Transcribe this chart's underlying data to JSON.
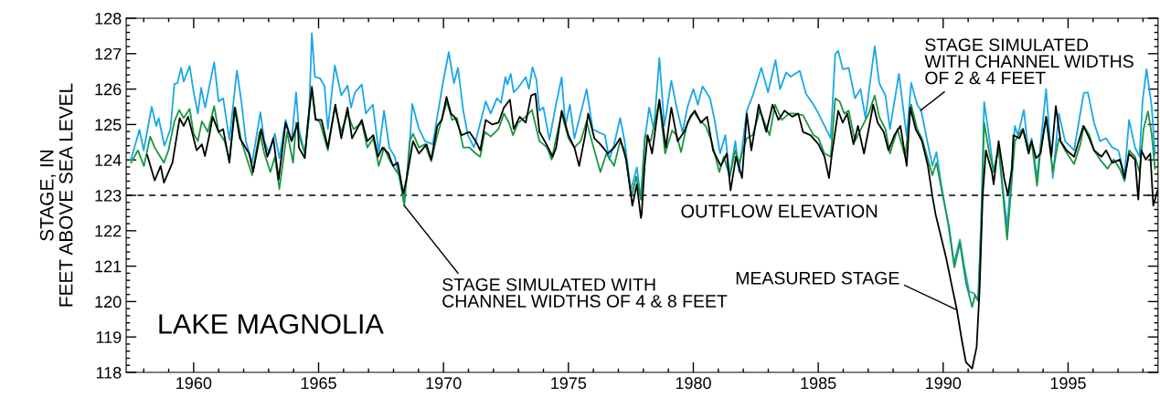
{
  "chart_data": {
    "type": "line",
    "title": "LAKE MAGNOLIA",
    "ylabel": "STAGE, IN\nFEET ABOVE SEA LEVEL",
    "xlim": [
      1957.3,
      1998.6
    ],
    "xticks": [
      1960,
      1965,
      1970,
      1975,
      1980,
      1985,
      1990,
      1995
    ],
    "ylim": [
      118,
      128
    ],
    "yticks": [
      118,
      119,
      120,
      121,
      122,
      123,
      124,
      125,
      126,
      127,
      128
    ],
    "grid": false,
    "marker": "none",
    "line_style": "solid",
    "ref_lines": [
      {
        "axis": "y",
        "value": 123,
        "label": "OUTFLOW ELEVATION",
        "color": "#000000",
        "line_style": "dashed"
      }
    ],
    "annotations": [
      {
        "text": "STAGE SIMULATED WITH\nCHANNEL WIDTHS OF 4 & 8 FEET",
        "x": 1968.43,
        "y": 122.71
      },
      {
        "text": "STAGE SIMULATED\nWITH CHANNEL WIDTHS\nOF 2 & 4 FEET",
        "x": 1989.1,
        "y": 125.4
      },
      {
        "text": "MEASURED STAGE",
        "x": 1990.55,
        "y": 119.76
      }
    ],
    "series": [
      {
        "color": "#1aa7e8",
        "x": [
          1957.49,
          1957.83,
          1958.0,
          1958.32,
          1958.5,
          1958.6,
          1958.83,
          1959.07,
          1959.23,
          1959.35,
          1959.5,
          1959.6,
          1959.84,
          1960.0,
          1960.17,
          1960.3,
          1960.46,
          1960.63,
          1960.82,
          1961.0,
          1961.18,
          1961.43,
          1961.73,
          1961.91,
          1962.09,
          1962.34,
          1962.67,
          1962.83,
          1963.03,
          1963.25,
          1963.43,
          1963.68,
          1963.92,
          1964.1,
          1964.21,
          1964.45,
          1964.61,
          1964.73,
          1964.85,
          1965.06,
          1965.24,
          1965.37,
          1965.65,
          1965.91,
          1966.16,
          1966.3,
          1966.46,
          1966.73,
          1966.89,
          1967.17,
          1967.41,
          1967.62,
          1967.83,
          1968.05,
          1968.29,
          1968.41,
          1968.59,
          1968.75,
          1969.02,
          1969.26,
          1969.57,
          1969.75,
          1970.0,
          1970.21,
          1970.42,
          1970.58,
          1970.79,
          1970.98,
          1971.22,
          1971.41,
          1971.69,
          1971.89,
          1972.14,
          1972.3,
          1972.48,
          1972.56,
          1972.69,
          1972.81,
          1972.99,
          1973.29,
          1973.42,
          1973.56,
          1973.72,
          1973.84,
          1974.0,
          1974.24,
          1974.49,
          1974.73,
          1974.88,
          1975.06,
          1975.24,
          1975.49,
          1975.73,
          1975.97,
          1976.22,
          1976.46,
          1976.64,
          1976.83,
          1977.07,
          1977.25,
          1977.5,
          1977.74,
          1977.9,
          1978.05,
          1978.23,
          1978.42,
          1978.64,
          1978.84,
          1979.12,
          1979.33,
          1979.57,
          1979.76,
          1980.0,
          1980.18,
          1980.37,
          1980.67,
          1980.85,
          1981.07,
          1981.28,
          1981.46,
          1981.68,
          1981.83,
          1982.14,
          1982.38,
          1982.72,
          1982.99,
          1983.29,
          1983.47,
          1983.72,
          1983.9,
          1984.26,
          1984.51,
          1984.81,
          1985.01,
          1985.25,
          1985.5,
          1985.68,
          1985.8,
          1985.98,
          1986.22,
          1986.47,
          1986.69,
          1986.89,
          1987.26,
          1987.44,
          1987.69,
          1987.87,
          1988.23,
          1988.54,
          1988.72,
          1988.96,
          1989.12,
          1989.39,
          1989.57,
          1989.73,
          1989.94,
          1990.18,
          1990.43,
          1990.67,
          1990.85,
          1991.04,
          1991.22,
          1991.4,
          1991.52,
          1991.64,
          1991.83,
          1992.02,
          1992.22,
          1992.56,
          1992.87,
          1992.99,
          1993.23,
          1993.42,
          1993.54,
          1993.76,
          1993.9,
          1994.12,
          1994.39,
          1994.63,
          1994.88,
          1995.24,
          1995.51,
          1995.63,
          1995.79,
          1996.04,
          1996.28,
          1996.52,
          1996.77,
          1997.01,
          1997.26,
          1997.44,
          1997.68,
          1997.86,
          1997.98,
          1998.14,
          1998.35,
          1998.48
        ],
        "values": [
          124.01,
          124.85,
          124.27,
          125.5,
          124.96,
          125.18,
          124.4,
          124.87,
          126.15,
          126.17,
          126.6,
          126.21,
          126.65,
          125.91,
          125.31,
          126.04,
          125.48,
          126.08,
          126.76,
          125.65,
          125.74,
          124.57,
          126.52,
          125.65,
          124.53,
          123.92,
          125.35,
          124.53,
          124.18,
          124.74,
          124.05,
          125.13,
          124.53,
          125.91,
          124.87,
          124.18,
          125.13,
          127.58,
          126.35,
          126.3,
          126.08,
          124.87,
          126.67,
          125.82,
          126.1,
          125.48,
          125.91,
          126.13,
          125.31,
          125.56,
          124.22,
          125.39,
          124.35,
          124.09,
          123.31,
          122.88,
          123.83,
          125.58,
          124.87,
          124.53,
          124.44,
          125.22,
          126.26,
          127.04,
          126.17,
          126.6,
          125.39,
          124.7,
          124.35,
          124.87,
          125.65,
          125.31,
          125.74,
          125.61,
          126.34,
          126.13,
          126.43,
          125.91,
          126.04,
          126.34,
          126.0,
          126.62,
          126.26,
          125.39,
          125.48,
          124.57,
          125.52,
          126.33,
          124.96,
          125.56,
          124.61,
          125.31,
          126.0,
          124.87,
          124.78,
          124.7,
          124.01,
          124.44,
          125.18,
          124.53,
          123.14,
          123.79,
          122.88,
          124.53,
          125.48,
          124.87,
          126.88,
          124.96,
          126.24,
          125.48,
          124.78,
          125.48,
          126.0,
          125.56,
          126.08,
          125.74,
          125.13,
          124.18,
          124.7,
          123.53,
          124.53,
          123.66,
          125.39,
          125.82,
          126.6,
          125.91,
          126.82,
          126.0,
          126.47,
          126.35,
          126.52,
          125.87,
          125.56,
          125.31,
          124.96,
          124.61,
          126.99,
          127.08,
          126.56,
          126.6,
          125.74,
          126.0,
          125.18,
          127.21,
          126.17,
          125.82,
          124.87,
          126.43,
          124.66,
          126.17,
          125.56,
          125.39,
          124.44,
          123.83,
          124.22,
          123.23,
          122.27,
          121.06,
          121.75,
          120.97,
          120.28,
          120.24,
          120.02,
          122.27,
          125.63,
          124.7,
          123.66,
          124.35,
          122.1,
          124.96,
          124.7,
          125.41,
          124.18,
          124.61,
          123.49,
          124.44,
          126.0,
          123.49,
          125.31,
          124.53,
          124.27,
          125.41,
          125.89,
          125.91,
          125.05,
          124.53,
          124.61,
          124.35,
          124.27,
          123.57,
          125.13,
          124.35,
          124.09,
          125.65,
          126.56,
          125.48,
          124.14
        ]
      },
      {
        "color": "#1a9641",
        "x": [
          1957.49,
          1957.77,
          1958.01,
          1958.26,
          1958.44,
          1958.81,
          1958.99,
          1959.23,
          1959.42,
          1959.6,
          1959.84,
          1960.0,
          1960.17,
          1960.33,
          1960.57,
          1960.82,
          1961.0,
          1961.24,
          1961.43,
          1961.67,
          1961.91,
          1962.34,
          1962.64,
          1962.83,
          1963.07,
          1963.25,
          1963.43,
          1963.74,
          1963.98,
          1964.1,
          1964.21,
          1964.45,
          1964.73,
          1964.88,
          1965.06,
          1965.37,
          1965.65,
          1965.91,
          1966.16,
          1966.4,
          1966.73,
          1966.95,
          1967.19,
          1967.41,
          1967.62,
          1967.83,
          1968.05,
          1968.23,
          1968.43,
          1968.65,
          1968.78,
          1969.02,
          1969.26,
          1969.51,
          1969.75,
          1970.0,
          1970.14,
          1970.34,
          1970.54,
          1970.79,
          1971.04,
          1971.29,
          1971.47,
          1971.65,
          1971.89,
          1972.2,
          1972.42,
          1972.62,
          1972.78,
          1972.99,
          1973.29,
          1973.54,
          1973.84,
          1974.15,
          1974.33,
          1974.51,
          1974.73,
          1975.0,
          1975.24,
          1975.49,
          1975.73,
          1975.97,
          1976.28,
          1976.52,
          1976.83,
          1977.07,
          1977.25,
          1977.53,
          1977.72,
          1977.9,
          1978.07,
          1978.29,
          1978.64,
          1978.87,
          1979.15,
          1979.33,
          1979.51,
          1979.76,
          1980.02,
          1980.24,
          1980.49,
          1980.73,
          1981.04,
          1981.22,
          1981.46,
          1981.68,
          1981.83,
          1982.14,
          1982.38,
          1982.66,
          1983.05,
          1983.27,
          1983.54,
          1983.84,
          1984.08,
          1984.39,
          1984.81,
          1985.01,
          1985.25,
          1985.5,
          1985.68,
          1985.86,
          1986.04,
          1986.22,
          1986.47,
          1986.71,
          1987.02,
          1987.26,
          1987.44,
          1987.69,
          1987.87,
          1988.17,
          1988.48,
          1988.72,
          1988.96,
          1989.15,
          1989.39,
          1989.57,
          1989.73,
          1989.99,
          1990.24,
          1990.45,
          1990.67,
          1990.91,
          1991.16,
          1991.28,
          1991.4,
          1991.52,
          1991.64,
          1991.83,
          1992.02,
          1992.22,
          1992.56,
          1992.87,
          1993.17,
          1993.42,
          1993.54,
          1993.76,
          1993.9,
          1994.12,
          1994.39,
          1994.63,
          1994.88,
          1995.24,
          1995.49,
          1995.63,
          1995.85,
          1996.04,
          1996.28,
          1996.58,
          1996.83,
          1997.07,
          1997.26,
          1997.44,
          1997.68,
          1997.86,
          1998.02,
          1998.2,
          1998.35,
          1998.48
        ],
        "values": [
          123.92,
          124.27,
          123.83,
          124.66,
          124.35,
          123.92,
          124.27,
          125.09,
          125.41,
          125.18,
          125.44,
          124.74,
          124.53,
          125.09,
          124.79,
          125.52,
          124.79,
          124.53,
          124.01,
          125.48,
          124.53,
          123.57,
          124.79,
          124.18,
          123.66,
          124.09,
          123.18,
          124.79,
          123.92,
          125.05,
          124.7,
          124.18,
          126.08,
          125.18,
          125.05,
          124.27,
          125.48,
          124.79,
          125.31,
          124.87,
          125.05,
          124.35,
          124.61,
          123.83,
          124.35,
          124.01,
          123.75,
          123.57,
          122.71,
          124.53,
          124.74,
          124.35,
          124.44,
          123.96,
          124.7,
          125.31,
          125.65,
          125.13,
          125.18,
          124.35,
          124.35,
          124.18,
          124.09,
          124.79,
          124.66,
          124.87,
          125.31,
          125.05,
          124.7,
          125.05,
          125.22,
          125.41,
          124.53,
          124.35,
          124.01,
          124.61,
          125.31,
          124.61,
          124.35,
          124.53,
          125.09,
          124.44,
          123.66,
          124.18,
          123.83,
          124.53,
          124.27,
          122.97,
          123.53,
          122.88,
          124.7,
          124.53,
          125.65,
          124.18,
          124.83,
          124.7,
          124.22,
          125.05,
          125.35,
          125.13,
          124.96,
          124.53,
          123.66,
          124.09,
          123.53,
          124.27,
          123.92,
          124.61,
          124.7,
          125.39,
          124.7,
          125.56,
          125.13,
          125.31,
          125.31,
          125.26,
          124.7,
          124.61,
          124.18,
          124.09,
          125.74,
          125.65,
          125.31,
          125.39,
          124.53,
          124.87,
          125.31,
          125.82,
          125.22,
          124.87,
          124.18,
          124.87,
          124.09,
          125.56,
          124.87,
          124.61,
          124.01,
          123.57,
          123.92,
          122.97,
          122.1,
          120.97,
          121.66,
          120.54,
          119.85,
          120.19,
          120.02,
          122.1,
          125.05,
          124.27,
          123.66,
          124.35,
          121.75,
          124.53,
          124.87,
          124.35,
          124.53,
          123.27,
          124.35,
          125.18,
          123.66,
          124.61,
          124.27,
          123.88,
          124.44,
          124.96,
          124.7,
          124.27,
          124.01,
          123.75,
          124.01,
          123.75,
          123.4,
          124.27,
          124.09,
          123.66,
          124.87,
          125.37,
          124.7,
          123.75
        ]
      },
      {
        "color": "#000000",
        "x": [
          1958.14,
          1958.44,
          1958.68,
          1958.81,
          1959.15,
          1959.27,
          1959.44,
          1959.6,
          1959.78,
          1960.12,
          1960.33,
          1960.45,
          1960.63,
          1960.76,
          1961.0,
          1961.18,
          1961.43,
          1961.64,
          1961.85,
          1962.22,
          1962.38,
          1962.7,
          1962.95,
          1963.19,
          1963.4,
          1963.68,
          1963.92,
          1964.17,
          1964.21,
          1964.45,
          1964.57,
          1964.73,
          1964.88,
          1965.12,
          1965.37,
          1965.67,
          1965.91,
          1966.16,
          1966.34,
          1966.73,
          1966.95,
          1967.19,
          1967.38,
          1967.56,
          1967.8,
          1967.98,
          1968.17,
          1968.39,
          1968.53,
          1968.78,
          1969.02,
          1969.32,
          1969.51,
          1969.75,
          1969.93,
          1970.12,
          1970.3,
          1970.48,
          1970.72,
          1971.04,
          1971.29,
          1971.47,
          1971.69,
          1971.95,
          1972.2,
          1972.42,
          1972.66,
          1972.81,
          1973.05,
          1973.29,
          1973.51,
          1973.68,
          1973.84,
          1974.12,
          1974.37,
          1974.51,
          1974.73,
          1975.0,
          1975.24,
          1975.43,
          1975.67,
          1975.79,
          1976.04,
          1976.28,
          1976.58,
          1976.83,
          1977.07,
          1977.31,
          1977.56,
          1977.74,
          1977.9,
          1977.93,
          1978.05,
          1978.17,
          1978.35,
          1978.64,
          1978.9,
          1979.12,
          1979.37,
          1979.63,
          1979.88,
          1980.06,
          1980.3,
          1980.55,
          1980.79,
          1981.1,
          1981.34,
          1981.49,
          1981.71,
          1981.95,
          1982.14,
          1982.32,
          1982.62,
          1982.92,
          1983.17,
          1983.41,
          1983.65,
          1983.96,
          1984.2,
          1984.39,
          1984.69,
          1985.01,
          1985.25,
          1985.43,
          1985.55,
          1985.8,
          1985.98,
          1986.16,
          1986.41,
          1986.59,
          1986.83,
          1987.02,
          1987.2,
          1987.38,
          1987.62,
          1987.81,
          1988.05,
          1988.29,
          1988.54,
          1988.68,
          1988.9,
          1989.15,
          1989.39,
          1989.57,
          1989.7,
          1989.88,
          1990.12,
          1990.37,
          1990.55,
          1990.73,
          1990.91,
          1991.16,
          1991.34,
          1991.46,
          1991.58,
          1991.71,
          1991.95,
          1992.02,
          1992.22,
          1992.44,
          1992.59,
          1992.75,
          1992.81,
          1993.05,
          1993.2,
          1993.42,
          1993.54,
          1993.72,
          1993.9,
          1994.12,
          1994.33,
          1994.51,
          1994.7,
          1994.94,
          1995.24,
          1995.61,
          1995.85,
          1996.04,
          1996.34,
          1996.52,
          1996.77,
          1997.07,
          1997.26,
          1997.44,
          1997.68,
          1997.81,
          1997.93,
          1998.11,
          1998.29,
          1998.41,
          1998.58
        ],
        "values": [
          124.14,
          123.42,
          123.83,
          123.36,
          123.92,
          124.44,
          125.18,
          124.96,
          125.22,
          124.27,
          124.44,
          124.11,
          124.7,
          125.22,
          124.79,
          124.87,
          123.92,
          125.48,
          124.61,
          124.18,
          123.66,
          124.87,
          124.09,
          124.61,
          123.44,
          125.05,
          124.53,
          125.05,
          124.35,
          124.05,
          125.05,
          126.04,
          125.13,
          125.13,
          124.35,
          125.56,
          124.61,
          125.48,
          124.61,
          125.13,
          124.53,
          124.7,
          124.09,
          124.35,
          124.18,
          123.83,
          123.92,
          123.05,
          123.49,
          124.53,
          124.18,
          124.44,
          124.01,
          124.96,
          125.13,
          125.78,
          125.31,
          125.18,
          124.7,
          124.79,
          124.53,
          124.27,
          125.13,
          125.0,
          125.05,
          125.48,
          125.7,
          124.87,
          125.22,
          125.05,
          125.82,
          125.87,
          124.79,
          124.44,
          124.09,
          124.35,
          125.39,
          124.7,
          124.35,
          123.83,
          124.7,
          125.31,
          124.61,
          124.44,
          124.18,
          124.35,
          124.61,
          124.01,
          122.71,
          123.31,
          122.36,
          122.45,
          123.83,
          124.7,
          124.18,
          125.7,
          124.35,
          125.48,
          124.53,
          124.79,
          125.22,
          125.39,
          125.05,
          125.22,
          124.27,
          123.83,
          124.18,
          123.14,
          124.09,
          123.49,
          125.31,
          124.27,
          125.56,
          124.79,
          125.56,
          125.13,
          125.39,
          125.22,
          125.31,
          124.79,
          124.7,
          124.44,
          124.09,
          123.49,
          124.18,
          125.39,
          125.05,
          125.31,
          124.44,
          124.96,
          124.18,
          124.87,
          125.56,
          125.05,
          124.79,
          124.27,
          124.7,
          124.96,
          123.83,
          125.48,
          124.87,
          124.53,
          123.83,
          122.97,
          122.45,
          121.93,
          121.23,
          120.37,
          119.76,
          118.98,
          118.29,
          118.11,
          118.72,
          120.37,
          122.97,
          124.27,
          123.66,
          123.31,
          124.53,
          123.49,
          123.01,
          123.75,
          124.7,
          124.61,
          124.87,
          124.18,
          124.53,
          124.05,
          124.18,
          125.22,
          124.09,
          125.52,
          124.53,
          124.27,
          124.09,
          124.96,
          124.61,
          124.27,
          124.09,
          124.27,
          123.92,
          124.01,
          123.49,
          124.18,
          124.01,
          122.88,
          124.27,
          124.01,
          124.18,
          122.71,
          123.14
        ]
      }
    ]
  }
}
